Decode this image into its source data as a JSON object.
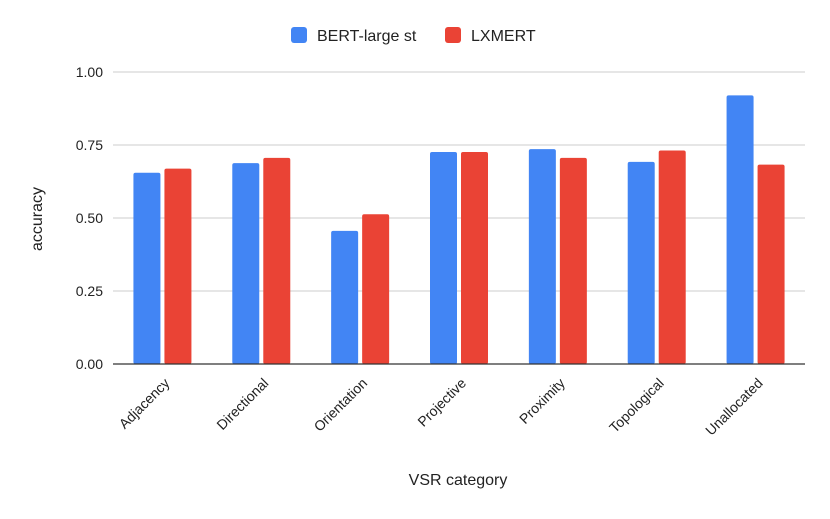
{
  "chart_data": {
    "type": "bar",
    "title": "",
    "xlabel": "VSR category",
    "ylabel": "accuracy",
    "categories": [
      "Adjacency",
      "Directional",
      "Orientation",
      "Projective",
      "Proximity",
      "Topological",
      "Unallocated"
    ],
    "series": [
      {
        "name": "BERT-large st",
        "color": "#4285F4",
        "values": [
          0.655,
          0.688,
          0.456,
          0.726,
          0.736,
          0.692,
          0.92
        ]
      },
      {
        "name": "LXMERT",
        "color": "#EA4335",
        "values": [
          0.669,
          0.706,
          0.513,
          0.726,
          0.706,
          0.731,
          0.683
        ]
      }
    ],
    "ylim": [
      0,
      1
    ],
    "yticks": [
      0,
      0.25,
      0.5,
      0.75,
      1
    ],
    "ytick_labels": [
      "0.00",
      "0.25",
      "0.50",
      "0.75",
      "1.00"
    ],
    "grid": true,
    "legend_position": "top-center"
  }
}
